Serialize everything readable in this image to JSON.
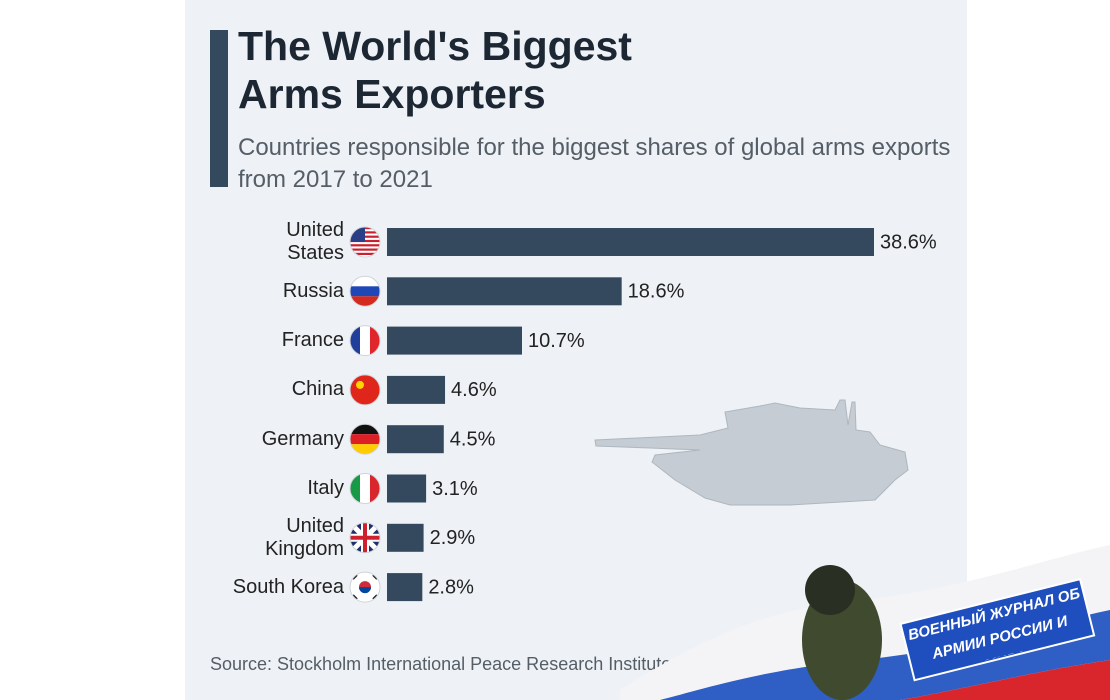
{
  "title": "The World's Biggest Arms Exporters",
  "subtitle": "Countries responsible for the biggest shares of global arms exports from 2017 to 2021",
  "chart_data": {
    "type": "bar",
    "orientation": "horizontal",
    "categories": [
      "United States",
      "Russia",
      "France",
      "China",
      "Germany",
      "Italy",
      "United Kingdom",
      "South Korea"
    ],
    "values": [
      38.6,
      18.6,
      10.7,
      4.6,
      4.5,
      3.1,
      2.9,
      2.8
    ],
    "value_labels": [
      "38.6%",
      "18.6%",
      "10.7%",
      "4.6%",
      "4.5%",
      "3.1%",
      "2.9%",
      "2.8%"
    ],
    "color": "#34495e"
  },
  "source": "Source: Stockholm International Peace Research Institute",
  "watermark": "ВОЕННЫЙ ЖУРНАЛ ОБ АРМИИ РОССИИ И МИРА"
}
